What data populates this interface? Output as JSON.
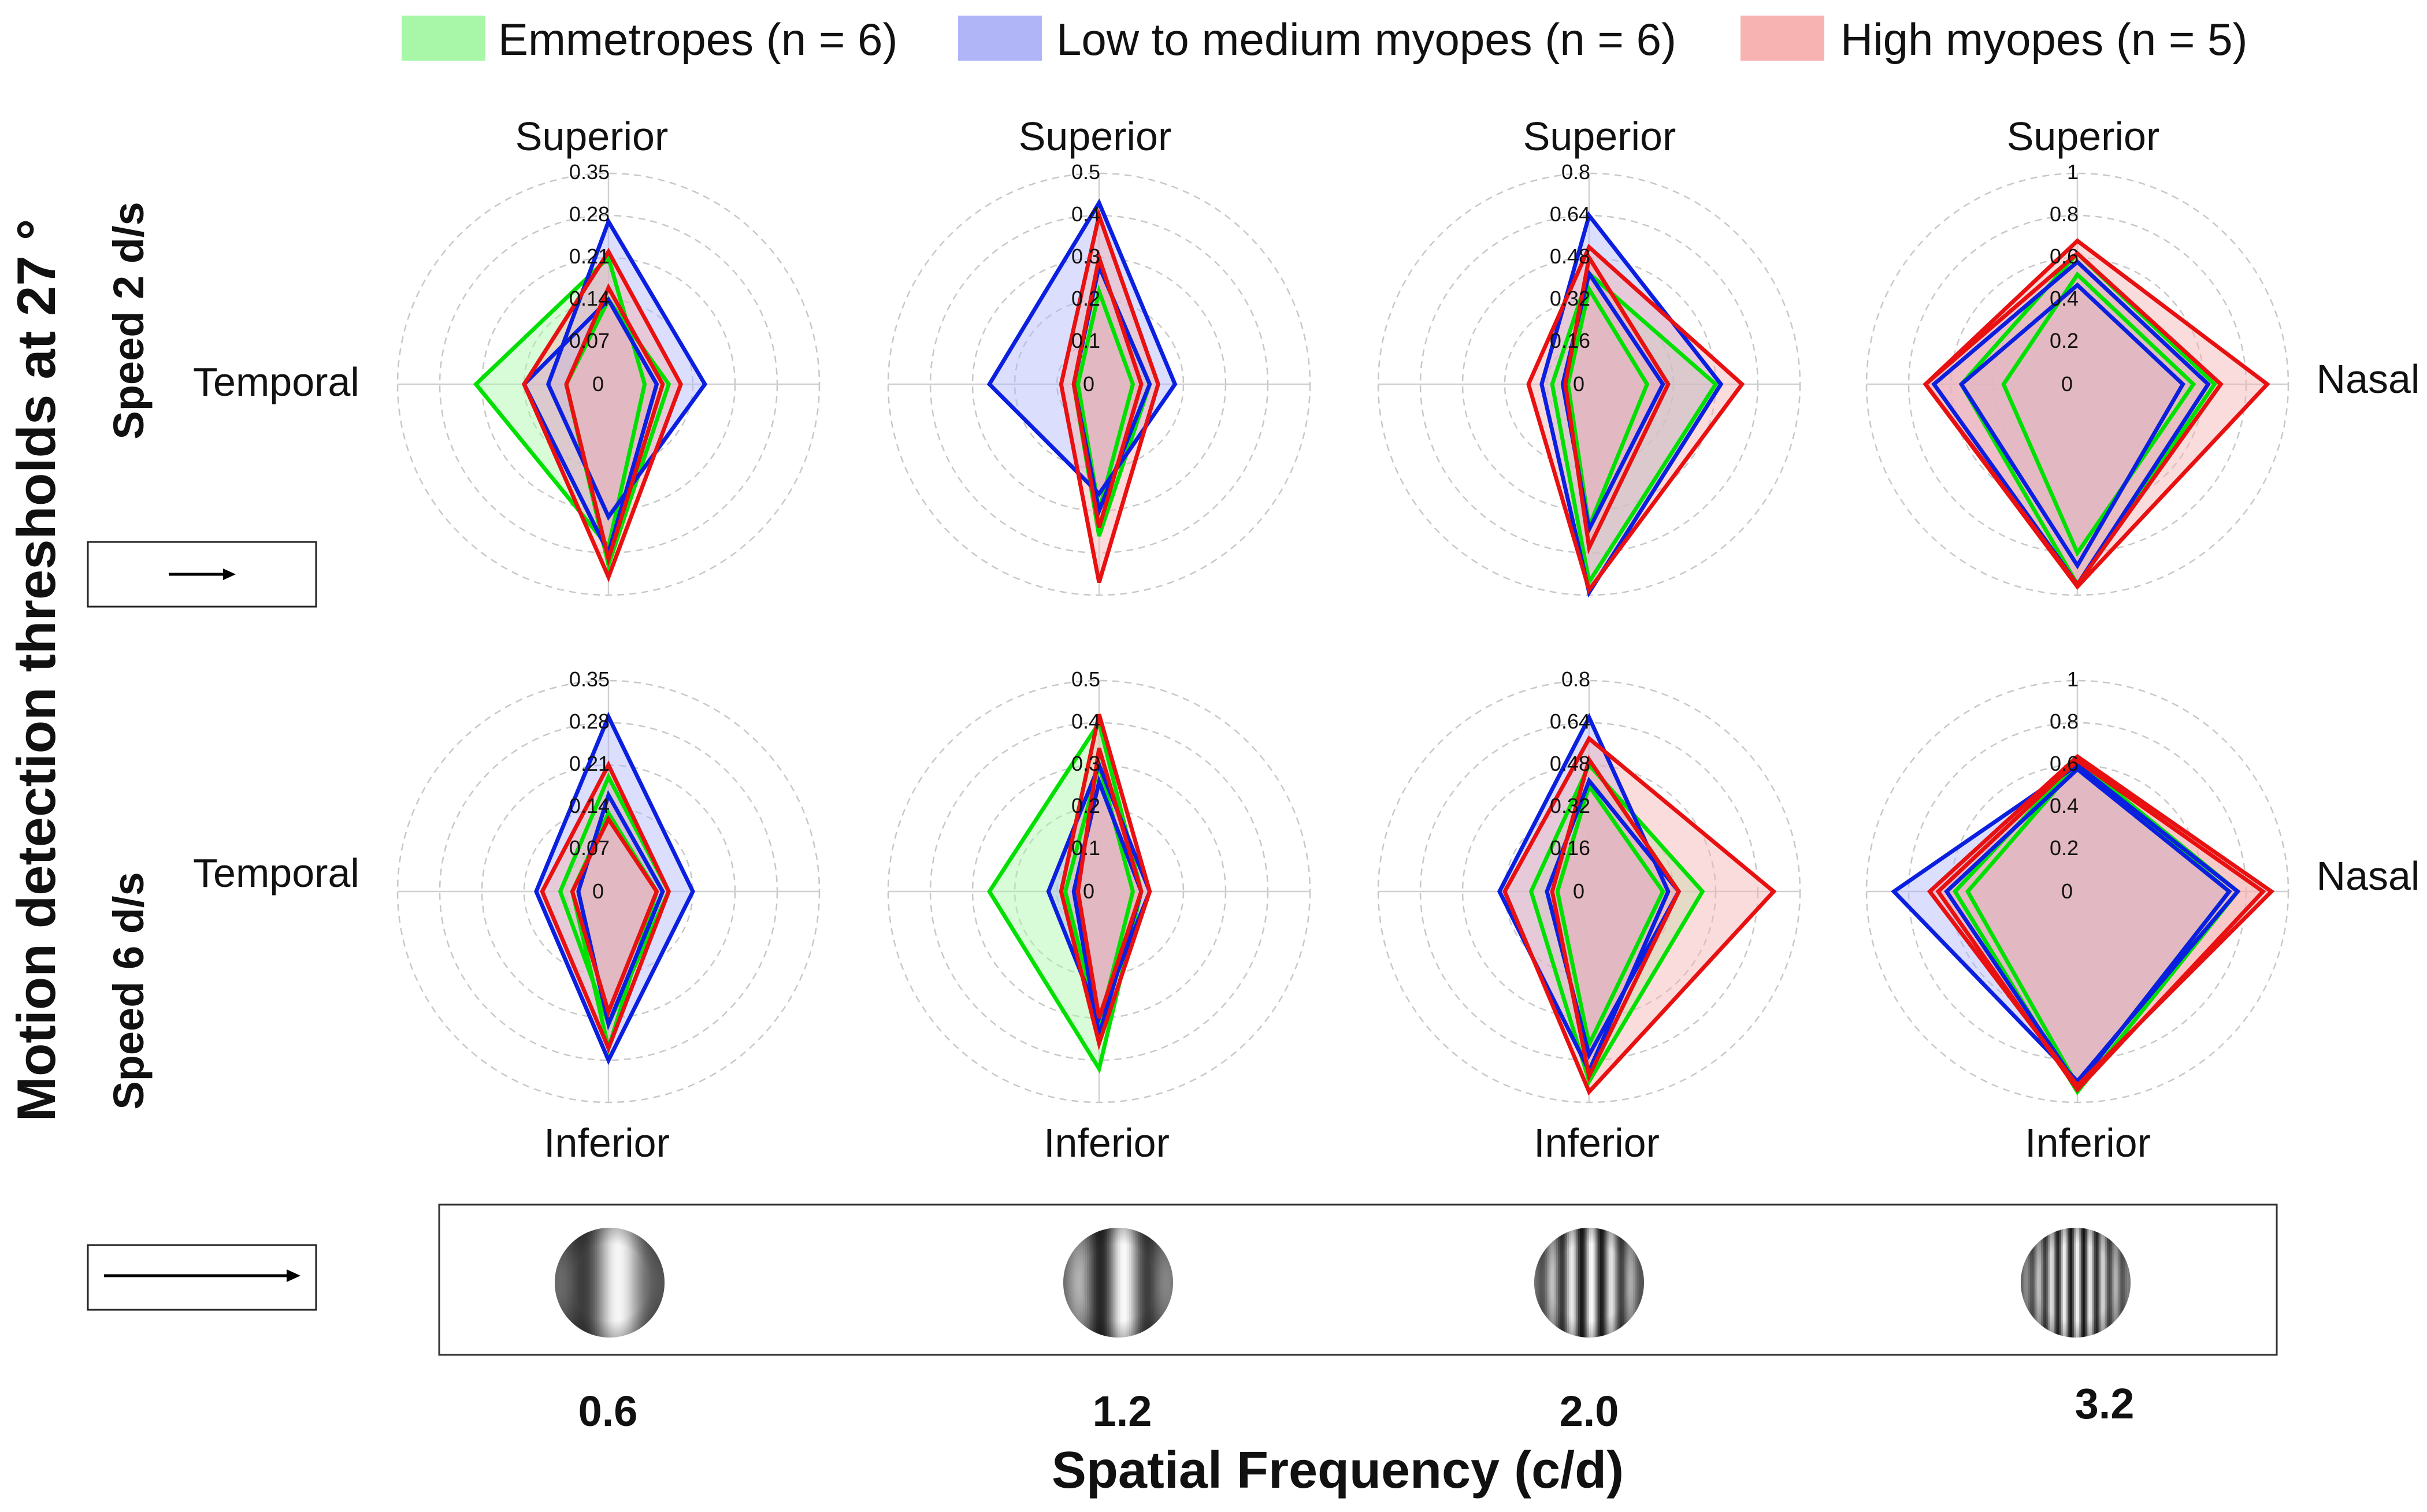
{
  "legend": [
    {
      "label": "Emmetropes (n = 6)",
      "color": "#00e000",
      "fill": "#a8f7a8"
    },
    {
      "label": "Low to medium myopes (n = 6)",
      "color": "#0b1fe0",
      "fill": "#b0b5f8"
    },
    {
      "label": "High myopes (n = 5)",
      "color": "#e81010",
      "fill": "#f7b2b2"
    }
  ],
  "labels": {
    "y_title": "Motion detection thresholds at 27 °",
    "row_titles": [
      "Speed  2 d/s",
      "Speed  6 d/s"
    ],
    "superior": "Superior",
    "inferior": "Inferior",
    "temporal": "Temporal",
    "nasal": "Nasal",
    "x_title": "Spatial Frequency (c/d)",
    "sf_values": [
      "0.6",
      "1.2",
      "2.0",
      "3.2"
    ]
  },
  "chart_data": {
    "type": "radar",
    "axes": [
      "Superior",
      "Nasal",
      "Inferior",
      "Temporal"
    ],
    "series_names": [
      "Emmetropes (n = 6)",
      "Low to medium myopes (n = 6)",
      "High myopes (n = 5)"
    ],
    "panels": [
      {
        "speed": "2 d/s",
        "spatial_frequency": 0.6,
        "rmax": 0.35,
        "ticks": [
          "0",
          "0.07",
          "0.14",
          "0.21",
          "0.28",
          "0.35"
        ],
        "series": [
          {
            "name": "Emmetropes (n = 6)",
            "lines": [
              [
                0.21,
                0.06,
                0.27,
                0.22
              ],
              [
                0.14,
                0.1,
                0.3,
                0.07
              ]
            ]
          },
          {
            "name": "Low to medium myopes (n = 6)",
            "lines": [
              [
                0.27,
                0.16,
                0.22,
                0.1
              ],
              [
                0.14,
                0.08,
                0.28,
                0.14
              ]
            ]
          },
          {
            "name": "High myopes (n = 5)",
            "lines": [
              [
                0.22,
                0.12,
                0.32,
                0.14
              ],
              [
                0.16,
                0.09,
                0.29,
                0.07
              ]
            ]
          }
        ]
      },
      {
        "speed": "2 d/s",
        "spatial_frequency": 1.2,
        "rmax": 0.5,
        "ticks": [
          "0",
          "0.1",
          "0.2",
          "0.3",
          "0.4",
          "0.5"
        ],
        "series": [
          {
            "name": "Emmetropes (n = 6)",
            "lines": [
              [
                0.28,
                0.12,
                0.36,
                0.06
              ],
              [
                0.22,
                0.08,
                0.3,
                0.05
              ]
            ]
          },
          {
            "name": "Low to medium myopes (n = 6)",
            "lines": [
              [
                0.43,
                0.18,
                0.26,
                0.26
              ],
              [
                0.28,
                0.12,
                0.3,
                0.06
              ]
            ]
          },
          {
            "name": "High myopes (n = 5)",
            "lines": [
              [
                0.4,
                0.14,
                0.47,
                0.09
              ],
              [
                0.3,
                0.1,
                0.34,
                0.06
              ]
            ]
          }
        ]
      },
      {
        "speed": "2 d/s",
        "spatial_frequency": 2.0,
        "rmax": 0.8,
        "ticks": [
          "0",
          "0.16",
          "0.32",
          "0.48",
          "0.64",
          "0.8"
        ],
        "series": [
          {
            "name": "Emmetropes (n = 6)",
            "lines": [
              [
                0.42,
                0.48,
                0.75,
                0.14
              ],
              [
                0.36,
                0.22,
                0.54,
                0.08
              ]
            ]
          },
          {
            "name": "Low to medium myopes (n = 6)",
            "lines": [
              [
                0.64,
                0.5,
                0.79,
                0.18
              ],
              [
                0.42,
                0.28,
                0.55,
                0.1
              ]
            ]
          },
          {
            "name": "High myopes (n = 5)",
            "lines": [
              [
                0.52,
                0.58,
                0.78,
                0.23
              ],
              [
                0.48,
                0.3,
                0.62,
                0.09
              ]
            ]
          }
        ]
      },
      {
        "speed": "2 d/s",
        "spatial_frequency": 3.2,
        "rmax": 1.0,
        "ticks": [
          "0",
          "0.2",
          "0.4",
          "0.6",
          "0.8",
          "1"
        ],
        "series": [
          {
            "name": "Emmetropes (n = 6)",
            "lines": [
              [
                0.62,
                0.65,
                0.95,
                0.55
              ],
              [
                0.52,
                0.55,
                0.8,
                0.35
              ]
            ]
          },
          {
            "name": "Low to medium myopes (n = 6)",
            "lines": [
              [
                0.58,
                0.62,
                0.95,
                0.68
              ],
              [
                0.47,
                0.5,
                0.86,
                0.55
              ]
            ]
          },
          {
            "name": "High myopes (n = 5)",
            "lines": [
              [
                0.68,
                0.9,
                0.96,
                0.72
              ],
              [
                0.62,
                0.68,
                0.95,
                0.72
              ]
            ]
          }
        ]
      },
      {
        "speed": "6 d/s",
        "spatial_frequency": 0.6,
        "rmax": 0.35,
        "ticks": [
          "0",
          "0.07",
          "0.14",
          "0.21",
          "0.28",
          "0.35"
        ],
        "series": [
          {
            "name": "Emmetropes (n = 6)",
            "lines": [
              [
                0.19,
                0.1,
                0.22,
                0.08
              ],
              [
                0.13,
                0.08,
                0.26,
                0.06
              ]
            ]
          },
          {
            "name": "Low to medium myopes (n = 6)",
            "lines": [
              [
                0.29,
                0.14,
                0.28,
                0.12
              ],
              [
                0.16,
                0.09,
                0.22,
                0.05
              ]
            ]
          },
          {
            "name": "High myopes (n = 5)",
            "lines": [
              [
                0.21,
                0.1,
                0.26,
                0.11
              ],
              [
                0.12,
                0.08,
                0.2,
                0.06
              ]
            ]
          }
        ]
      },
      {
        "speed": "6 d/s",
        "spatial_frequency": 1.2,
        "rmax": 0.5,
        "ticks": [
          "0",
          "0.1",
          "0.2",
          "0.3",
          "0.4",
          "0.5"
        ],
        "series": [
          {
            "name": "Emmetropes (n = 6)",
            "lines": [
              [
                0.4,
                0.1,
                0.42,
                0.26
              ],
              [
                0.3,
                0.08,
                0.32,
                0.08
              ]
            ]
          },
          {
            "name": "Low to medium myopes (n = 6)",
            "lines": [
              [
                0.3,
                0.12,
                0.3,
                0.12
              ],
              [
                0.26,
                0.1,
                0.34,
                0.06
              ]
            ]
          },
          {
            "name": "High myopes (n = 5)",
            "lines": [
              [
                0.42,
                0.12,
                0.36,
                0.09
              ],
              [
                0.34,
                0.1,
                0.3,
                0.05
              ]
            ]
          }
        ]
      },
      {
        "speed": "6 d/s",
        "spatial_frequency": 2.0,
        "rmax": 0.8,
        "ticks": [
          "0",
          "0.16",
          "0.32",
          "0.48",
          "0.64",
          "0.8"
        ],
        "series": [
          {
            "name": "Emmetropes (n = 6)",
            "lines": [
              [
                0.48,
                0.43,
                0.72,
                0.22
              ],
              [
                0.4,
                0.28,
                0.58,
                0.12
              ]
            ]
          },
          {
            "name": "Low to medium myopes (n = 6)",
            "lines": [
              [
                0.66,
                0.3,
                0.68,
                0.34
              ],
              [
                0.42,
                0.34,
                0.62,
                0.16
              ]
            ]
          },
          {
            "name": "High myopes (n = 5)",
            "lines": [
              [
                0.58,
                0.7,
                0.76,
                0.32
              ],
              [
                0.5,
                0.34,
                0.7,
                0.14
              ]
            ]
          }
        ]
      },
      {
        "speed": "6 d/s",
        "spatial_frequency": 3.2,
        "rmax": 1.0,
        "ticks": [
          "0",
          "0.2",
          "0.4",
          "0.6",
          "0.8",
          "1"
        ],
        "series": [
          {
            "name": "Emmetropes (n = 6)",
            "lines": [
              [
                0.62,
                0.76,
                0.95,
                0.58
              ],
              [
                0.6,
                0.72,
                0.92,
                0.52
              ]
            ]
          },
          {
            "name": "Low to medium myopes (n = 6)",
            "lines": [
              [
                0.6,
                0.76,
                0.9,
                0.87
              ],
              [
                0.58,
                0.72,
                0.92,
                0.62
              ]
            ]
          },
          {
            "name": "High myopes (n = 5)",
            "lines": [
              [
                0.64,
                0.92,
                0.92,
                0.7
              ],
              [
                0.62,
                0.88,
                0.94,
                0.66
              ]
            ]
          }
        ]
      }
    ]
  }
}
